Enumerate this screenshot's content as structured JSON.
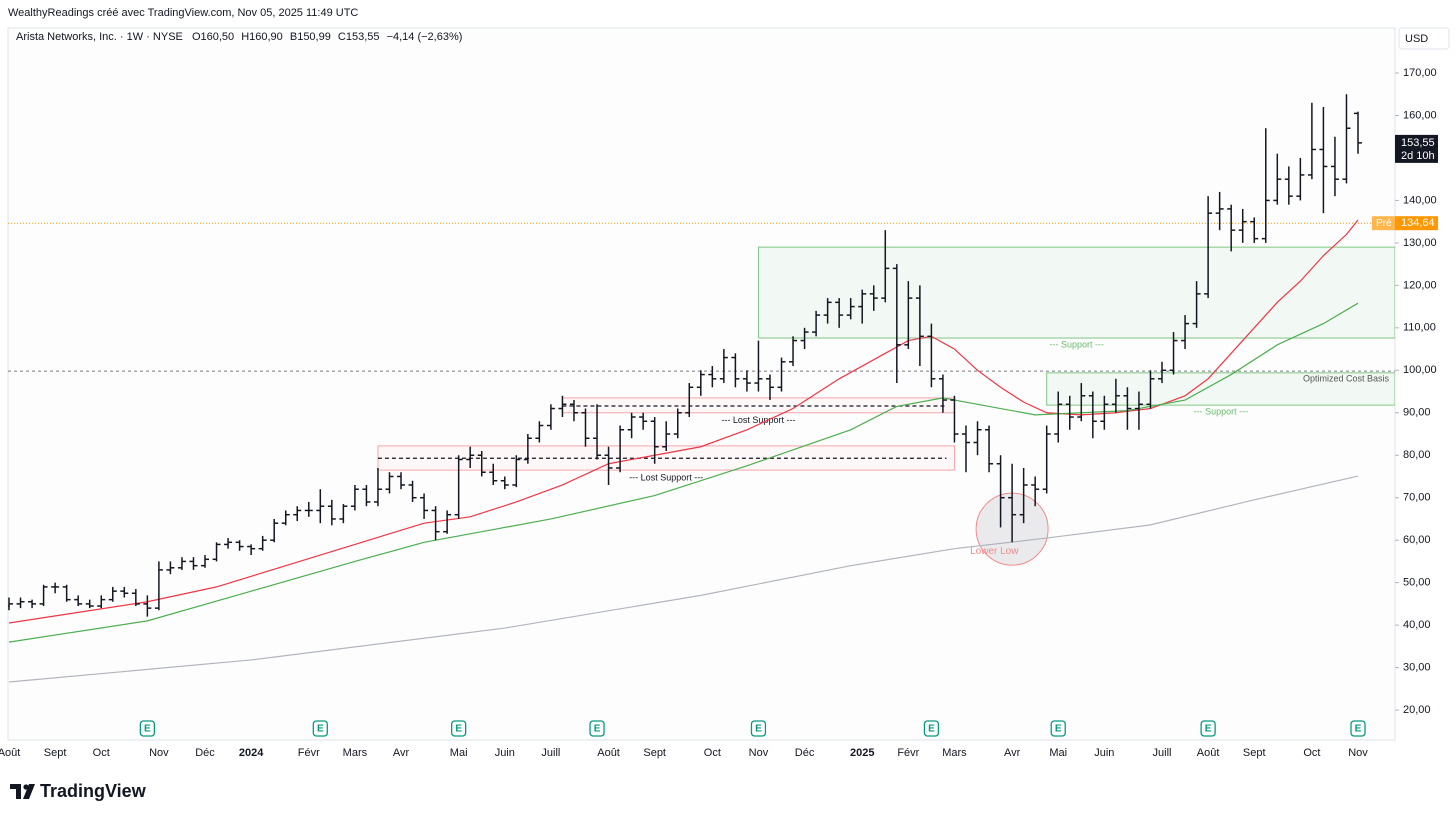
{
  "header": "WealthyReadings créé avec TradingView.com, Nov 05, 2025 11:49 UTC",
  "footer": "TradingView",
  "chart_data": {
    "type": "ohlc",
    "legend": {
      "symbol": "Arista Networks, Inc. · 1W · NYSE",
      "ohlc_labels": [
        "O160,50",
        "H160,90",
        "B150,99",
        "C153,55"
      ],
      "change": "−4,14 (−2,63%)"
    },
    "currency": "USD",
    "ylim": [
      12.95,
      180.6
    ],
    "yticks": [
      {
        "value": 20,
        "label": "20,00"
      },
      {
        "value": 30,
        "label": "30,00"
      },
      {
        "value": 40,
        "label": "40,00"
      },
      {
        "value": 50,
        "label": "50,00"
      },
      {
        "value": 60,
        "label": "60,00"
      },
      {
        "value": 70,
        "label": "70,00"
      },
      {
        "value": 80,
        "label": "80,00"
      },
      {
        "value": 90,
        "label": "90,00"
      },
      {
        "value": 100,
        "label": "100,00"
      },
      {
        "value": 110,
        "label": "110,00"
      },
      {
        "value": 120,
        "label": "120,00"
      },
      {
        "value": 130,
        "label": "130,00"
      },
      {
        "value": 140,
        "label": "140,00"
      },
      {
        "value": 150,
        "label": "150,00"
      },
      {
        "value": 160,
        "label": "160,00"
      },
      {
        "value": 170,
        "label": "170,00"
      }
    ],
    "grid": false,
    "bar_color": "#131722",
    "categories": [
      "Août",
      null,
      null,
      null,
      "Sept",
      null,
      null,
      null,
      "Oct",
      null,
      null,
      null,
      null,
      "Nov",
      null,
      null,
      null,
      "Déc",
      null,
      null,
      null,
      "2024",
      null,
      null,
      null,
      null,
      "Févr",
      null,
      null,
      null,
      "Mars",
      null,
      null,
      null,
      "Avr",
      null,
      null,
      null,
      null,
      "Mai",
      null,
      null,
      null,
      "Juin",
      null,
      null,
      null,
      "Juill",
      null,
      null,
      null,
      null,
      "Août",
      null,
      null,
      null,
      "Sept",
      null,
      null,
      null,
      null,
      "Oct",
      null,
      null,
      null,
      "Nov",
      null,
      null,
      null,
      "Déc",
      null,
      null,
      null,
      null,
      "2025",
      null,
      null,
      null,
      "Févr",
      null,
      null,
      null,
      "Mars",
      null,
      null,
      null,
      null,
      "Avr",
      null,
      null,
      null,
      "Mai",
      null,
      null,
      null,
      "Juin",
      null,
      null,
      null,
      null,
      "Juill",
      null,
      null,
      null,
      "Août",
      null,
      null,
      null,
      "Sept",
      null,
      null,
      null,
      null,
      "Oct",
      null,
      null,
      null,
      "Nov"
    ],
    "bars": [
      [
        44.5,
        46.5,
        43.5,
        45
      ],
      [
        45,
        46.5,
        44,
        45.5
      ],
      [
        45.5,
        46,
        44,
        45
      ],
      [
        45,
        49.5,
        44.5,
        49
      ],
      [
        49,
        50,
        47.5,
        49
      ],
      [
        49,
        49.5,
        45.5,
        46
      ],
      [
        46,
        47,
        44.5,
        45
      ],
      [
        45,
        46,
        44,
        44.5
      ],
      [
        44.5,
        47,
        44,
        46
      ],
      [
        46,
        49,
        45.5,
        48
      ],
      [
        48,
        49,
        46.5,
        47.5
      ],
      [
        47.5,
        48.5,
        44.5,
        45
      ],
      [
        45,
        47,
        42,
        44
      ],
      [
        44,
        55,
        43.5,
        53
      ],
      [
        53,
        55,
        52,
        53.5
      ],
      [
        53.5,
        56,
        53,
        55
      ],
      [
        55,
        56,
        53,
        54
      ],
      [
        54,
        56.5,
        53.5,
        55.5
      ],
      [
        55.5,
        59.5,
        55,
        59
      ],
      [
        59,
        60.5,
        58,
        59.5
      ],
      [
        59.5,
        60,
        57.5,
        58.5
      ],
      [
        58.5,
        59,
        56.5,
        58
      ],
      [
        58,
        61,
        57.5,
        60
      ],
      [
        60,
        65,
        59.5,
        64
      ],
      [
        64,
        67,
        63.5,
        66
      ],
      [
        66,
        68,
        64.5,
        67
      ],
      [
        67,
        69,
        65.5,
        67
      ],
      [
        67,
        72,
        64,
        68
      ],
      [
        68,
        69.5,
        63.5,
        65
      ],
      [
        65,
        68.5,
        64,
        68
      ],
      [
        68,
        73,
        67,
        72
      ],
      [
        72,
        73,
        68,
        69
      ],
      [
        69,
        77,
        68,
        72
      ],
      [
        72,
        76,
        71,
        75
      ],
      [
        75,
        76,
        72,
        73
      ],
      [
        73,
        74,
        69,
        70
      ],
      [
        70,
        71,
        65,
        67
      ],
      [
        67,
        68,
        60,
        62
      ],
      [
        62,
        67,
        61.5,
        66
      ],
      [
        66,
        80,
        65,
        79
      ],
      [
        79,
        82,
        77,
        80
      ],
      [
        80,
        81,
        75,
        76
      ],
      [
        76,
        78,
        73,
        74
      ],
      [
        74,
        75,
        72,
        73
      ],
      [
        73,
        80,
        72.5,
        79
      ],
      [
        79,
        85,
        78,
        84
      ],
      [
        84,
        88,
        83,
        87
      ],
      [
        87,
        92,
        86,
        91
      ],
      [
        91,
        94,
        89,
        92
      ],
      [
        92,
        93,
        88,
        90
      ],
      [
        90,
        91,
        82,
        84
      ],
      [
        84,
        92,
        79,
        80
      ],
      [
        80,
        82,
        73,
        77
      ],
      [
        77,
        87,
        76,
        86
      ],
      [
        86,
        90,
        84,
        89
      ],
      [
        89,
        90,
        86,
        88
      ],
      [
        88,
        89,
        78,
        82
      ],
      [
        82,
        88,
        81,
        85
      ],
      [
        85,
        91,
        84,
        90
      ],
      [
        90,
        97,
        89,
        96
      ],
      [
        96,
        100,
        94,
        99
      ],
      [
        99,
        101,
        96,
        98
      ],
      [
        98,
        105,
        97,
        103
      ],
      [
        103,
        104,
        96,
        98
      ],
      [
        98,
        100,
        95,
        97
      ],
      [
        97,
        107,
        95,
        98
      ],
      [
        98,
        99,
        93,
        96
      ],
      [
        96,
        103,
        95,
        102
      ],
      [
        102,
        108,
        101,
        107
      ],
      [
        107,
        110,
        105,
        109
      ],
      [
        109,
        114,
        108,
        113
      ],
      [
        113,
        117,
        111,
        116
      ],
      [
        116,
        117,
        110,
        113
      ],
      [
        113,
        117,
        112,
        115
      ],
      [
        115,
        119,
        111,
        118
      ],
      [
        118,
        120,
        114,
        117
      ],
      [
        117,
        133,
        116,
        124
      ],
      [
        124,
        125,
        97,
        106
      ],
      [
        106,
        121,
        105,
        117
      ],
      [
        117,
        120,
        101,
        108
      ],
      [
        108,
        111,
        96,
        98
      ],
      [
        98,
        99,
        90,
        93
      ],
      [
        93,
        94,
        83,
        85
      ],
      [
        85,
        87,
        76,
        83
      ],
      [
        83,
        88,
        80,
        86
      ],
      [
        86,
        87,
        76,
        78
      ],
      [
        78,
        80,
        63,
        70
      ],
      [
        70,
        78,
        59.5,
        66
      ],
      [
        66,
        77,
        64,
        73
      ],
      [
        73,
        75,
        68,
        72
      ],
      [
        72,
        87,
        71,
        85
      ],
      [
        85,
        95,
        83,
        92
      ],
      [
        92,
        94,
        86,
        89
      ],
      [
        89,
        97,
        88,
        94
      ],
      [
        94,
        95,
        84,
        88
      ],
      [
        88,
        94,
        86,
        92
      ],
      [
        92,
        98,
        90,
        94
      ],
      [
        94,
        96,
        86,
        91
      ],
      [
        91,
        95,
        86,
        92
      ],
      [
        92,
        100,
        91,
        98
      ],
      [
        98,
        102,
        97,
        100
      ],
      [
        100,
        109,
        99,
        107
      ],
      [
        107,
        113,
        105,
        111
      ],
      [
        111,
        121,
        110,
        118
      ],
      [
        118,
        141,
        117,
        137
      ],
      [
        137,
        142,
        133,
        138
      ],
      [
        138,
        139,
        128,
        133
      ],
      [
        133,
        138,
        130,
        135
      ],
      [
        135,
        136,
        130,
        131
      ],
      [
        131,
        157,
        130,
        140
      ],
      [
        140,
        151,
        139,
        145
      ],
      [
        145,
        148,
        139,
        141
      ],
      [
        141,
        150,
        140,
        146
      ],
      [
        146,
        163,
        145,
        152
      ],
      [
        152,
        162,
        137,
        148
      ],
      [
        148,
        155,
        141,
        145
      ],
      [
        145,
        165,
        144,
        157
      ],
      [
        160.5,
        160.9,
        150.99,
        153.55
      ]
    ],
    "series": [
      {
        "color": "#f23645",
        "x": [
          0,
          6,
          12,
          18,
          24,
          30,
          36,
          40,
          44,
          48,
          52,
          56,
          60,
          64,
          68,
          72,
          76,
          78,
          80,
          82,
          84,
          86,
          88,
          90,
          93,
          96,
          99,
          102,
          104,
          106,
          108,
          110,
          112,
          114,
          116,
          117
        ],
        "values": [
          40.5,
          43,
          45.5,
          49,
          54,
          59,
          64,
          65.5,
          69,
          73,
          78,
          80,
          82,
          86,
          91,
          98,
          104,
          107,
          108,
          105,
          100,
          96,
          92.5,
          90,
          89.5,
          90,
          91,
          94,
          98,
          104,
          110,
          116,
          121,
          127,
          132,
          135.4
        ]
      },
      {
        "color": "#4caf50",
        "x": [
          0,
          12,
          21,
          30,
          36,
          42,
          47,
          56,
          64,
          73,
          77,
          81,
          84,
          89,
          93,
          97,
          102,
          106,
          110,
          114,
          117
        ],
        "values": [
          36,
          41,
          48,
          55,
          59.5,
          62.5,
          65,
          70.5,
          77.5,
          86,
          91.5,
          93.5,
          92,
          89.5,
          90,
          90.5,
          93,
          99,
          106,
          111,
          115.8
        ]
      },
      {
        "color": "#b2b5be",
        "x": [
          0,
          21,
          43,
          60,
          73,
          82,
          90,
          99,
          108,
          117
        ],
        "values": [
          26.6,
          31.8,
          39.3,
          47,
          54,
          58,
          60.5,
          63.6,
          69.5,
          75.1
        ]
      }
    ],
    "earnings": {
      "label": "E",
      "bars": [
        12,
        27,
        39,
        51,
        65,
        80,
        91,
        104,
        117
      ]
    },
    "last_price": {
      "label": "153,55",
      "countdown": "2d 10h"
    },
    "premarket": {
      "label": "Pré",
      "value": 134.64,
      "value_label": "134,64"
    },
    "support_zones": [
      {
        "low": 107.6,
        "high": 129,
        "start": 65,
        "label": "--- Support ---"
      },
      {
        "low": 91.8,
        "high": 99.4,
        "start": 90,
        "label": "--- Support ---"
      }
    ],
    "lost_support_zones": [
      {
        "low": 76.5,
        "high": 82.2,
        "level": 79.3,
        "start": 32,
        "end": 82,
        "label": "--- Lost Support ---"
      },
      {
        "low": 90,
        "high": 93.5,
        "level": 91.6,
        "start": 48,
        "end": 82,
        "label": "--- Lost Support ---"
      }
    ],
    "cost_basis": {
      "value": 99.8,
      "label": "Optimized Cost Basis"
    },
    "lower_low": {
      "bar": 87,
      "value": 62.6,
      "label": "Lower Low"
    }
  }
}
